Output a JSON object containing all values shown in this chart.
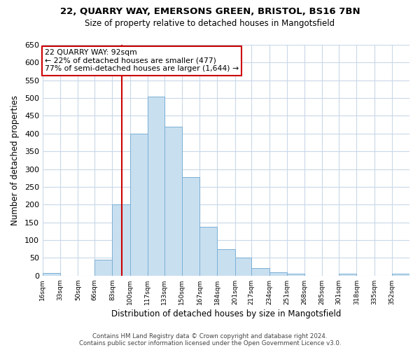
{
  "title1": "22, QUARRY WAY, EMERSONS GREEN, BRISTOL, BS16 7BN",
  "title2": "Size of property relative to detached houses in Mangotsfield",
  "xlabel": "Distribution of detached houses by size in Mangotsfield",
  "ylabel": "Number of detached properties",
  "bar_color": "#c8dff0",
  "bar_edge_color": "#7ab0d4",
  "bin_labels": [
    "16sqm",
    "33sqm",
    "50sqm",
    "66sqm",
    "83sqm",
    "100sqm",
    "117sqm",
    "133sqm",
    "150sqm",
    "167sqm",
    "184sqm",
    "201sqm",
    "217sqm",
    "234sqm",
    "251sqm",
    "268sqm",
    "285sqm",
    "301sqm",
    "318sqm",
    "335sqm",
    "352sqm"
  ],
  "bin_edges": [
    16,
    33,
    50,
    66,
    83,
    100,
    117,
    133,
    150,
    167,
    184,
    201,
    217,
    234,
    251,
    268,
    285,
    301,
    318,
    335,
    352,
    369
  ],
  "bar_heights": [
    8,
    0,
    0,
    45,
    200,
    400,
    505,
    420,
    278,
    138,
    75,
    50,
    22,
    10,
    5,
    0,
    0,
    5,
    0,
    0,
    5
  ],
  "vline_x": 92,
  "vline_color": "#cc0000",
  "annotation_line1": "22 QUARRY WAY: 92sqm",
  "annotation_line2": "← 22% of detached houses are smaller (477)",
  "annotation_line3": "77% of semi-detached houses are larger (1,644) →",
  "ylim": [
    0,
    650
  ],
  "yticks": [
    0,
    50,
    100,
    150,
    200,
    250,
    300,
    350,
    400,
    450,
    500,
    550,
    600,
    650
  ],
  "footer1": "Contains HM Land Registry data © Crown copyright and database right 2024.",
  "footer2": "Contains public sector information licensed under the Open Government Licence v3.0.",
  "bg_color": "#ffffff",
  "grid_color": "#c8d8e8"
}
